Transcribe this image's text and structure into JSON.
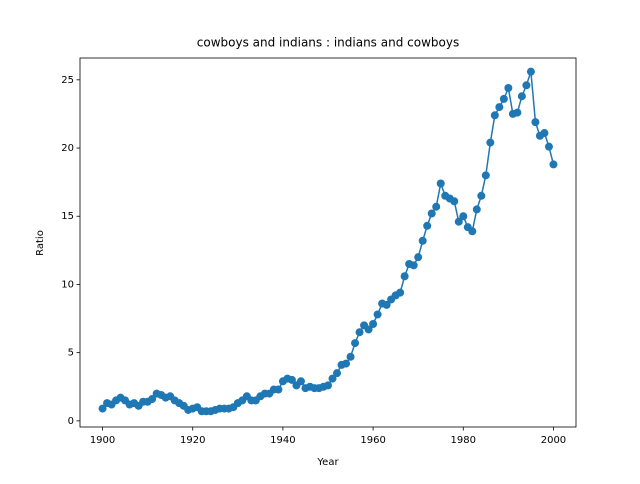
{
  "chart_data": {
    "type": "line",
    "title": "cowboys and indians : indians and cowboys",
    "x_label": "Year",
    "y_label": "Ratio",
    "x": [
      1900,
      1901,
      1902,
      1903,
      1904,
      1905,
      1906,
      1907,
      1908,
      1909,
      1910,
      1911,
      1912,
      1913,
      1914,
      1915,
      1916,
      1917,
      1918,
      1919,
      1920,
      1921,
      1922,
      1923,
      1924,
      1925,
      1926,
      1927,
      1928,
      1929,
      1930,
      1931,
      1932,
      1933,
      1934,
      1935,
      1936,
      1937,
      1938,
      1939,
      1940,
      1941,
      1942,
      1943,
      1944,
      1945,
      1946,
      1947,
      1948,
      1949,
      1950,
      1951,
      1952,
      1953,
      1954,
      1955,
      1956,
      1957,
      1958,
      1959,
      1960,
      1961,
      1962,
      1963,
      1964,
      1965,
      1966,
      1967,
      1968,
      1969,
      1970,
      1971,
      1972,
      1973,
      1974,
      1975,
      1976,
      1977,
      1978,
      1979,
      1980,
      1981,
      1982,
      1983,
      1984,
      1985,
      1986,
      1987,
      1988,
      1989,
      1990,
      1991,
      1992,
      1993,
      1994,
      1995,
      1996,
      1997,
      1998,
      1999,
      2000
    ],
    "series": [
      {
        "color": "#1f77b4",
        "values": [
          0.9,
          1.3,
          1.2,
          1.5,
          1.7,
          1.5,
          1.2,
          1.3,
          1.1,
          1.4,
          1.4,
          1.6,
          2.0,
          1.9,
          1.7,
          1.8,
          1.5,
          1.3,
          1.1,
          0.8,
          0.9,
          1.0,
          0.7,
          0.7,
          0.7,
          0.8,
          0.9,
          0.9,
          0.9,
          1.0,
          1.3,
          1.5,
          1.8,
          1.5,
          1.5,
          1.8,
          2.0,
          2.0,
          2.3,
          2.3,
          2.9,
          3.1,
          3.0,
          2.6,
          2.9,
          2.4,
          2.5,
          2.4,
          2.4,
          2.5,
          2.6,
          3.1,
          3.5,
          4.1,
          4.2,
          4.7,
          5.7,
          6.5,
          7.0,
          6.7,
          7.1,
          7.8,
          8.6,
          8.5,
          8.9,
          9.2,
          9.4,
          10.6,
          11.5,
          11.4,
          12.0,
          13.2,
          14.3,
          15.2,
          15.7,
          17.4,
          16.5,
          16.3,
          16.1,
          14.6,
          15.0,
          14.2,
          13.9,
          15.5,
          16.5,
          18.0,
          20.4,
          22.4,
          23.0,
          23.6,
          24.4,
          22.5,
          22.6,
          23.8,
          24.6,
          25.6,
          21.9,
          20.9,
          21.1,
          20.1,
          18.8
        ]
      }
    ],
    "xlim": [
      1895,
      2005
    ],
    "xticks": [
      1900,
      1920,
      1940,
      1960,
      1980,
      2000
    ],
    "ylim": [
      -0.45,
      26.6
    ],
    "yticks": [
      0,
      5,
      10,
      15,
      20,
      25
    ],
    "grid": false
  }
}
